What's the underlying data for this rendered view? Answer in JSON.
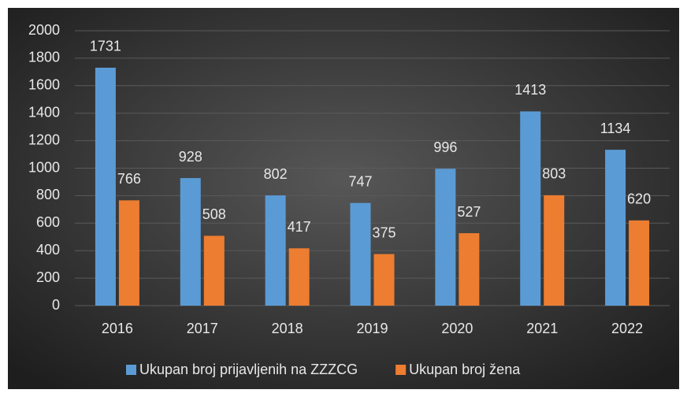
{
  "chart_data": {
    "type": "bar",
    "categories": [
      "2016",
      "2017",
      "2018",
      "2019",
      "2020",
      "2021",
      "2022"
    ],
    "series": [
      {
        "name": "Ukupan broj prijavljenih na ZZZCG",
        "color": "#5b9bd5",
        "values": [
          1731,
          928,
          802,
          747,
          996,
          1413,
          1134
        ]
      },
      {
        "name": "Ukupan broj žena",
        "color": "#ed7d31",
        "values": [
          766,
          508,
          417,
          375,
          527,
          803,
          620
        ]
      }
    ],
    "ylim": [
      0,
      2000
    ],
    "yticks": [
      0,
      200,
      400,
      600,
      800,
      1000,
      1200,
      1400,
      1600,
      1800,
      2000
    ],
    "grid": true,
    "legend": "bottom"
  }
}
